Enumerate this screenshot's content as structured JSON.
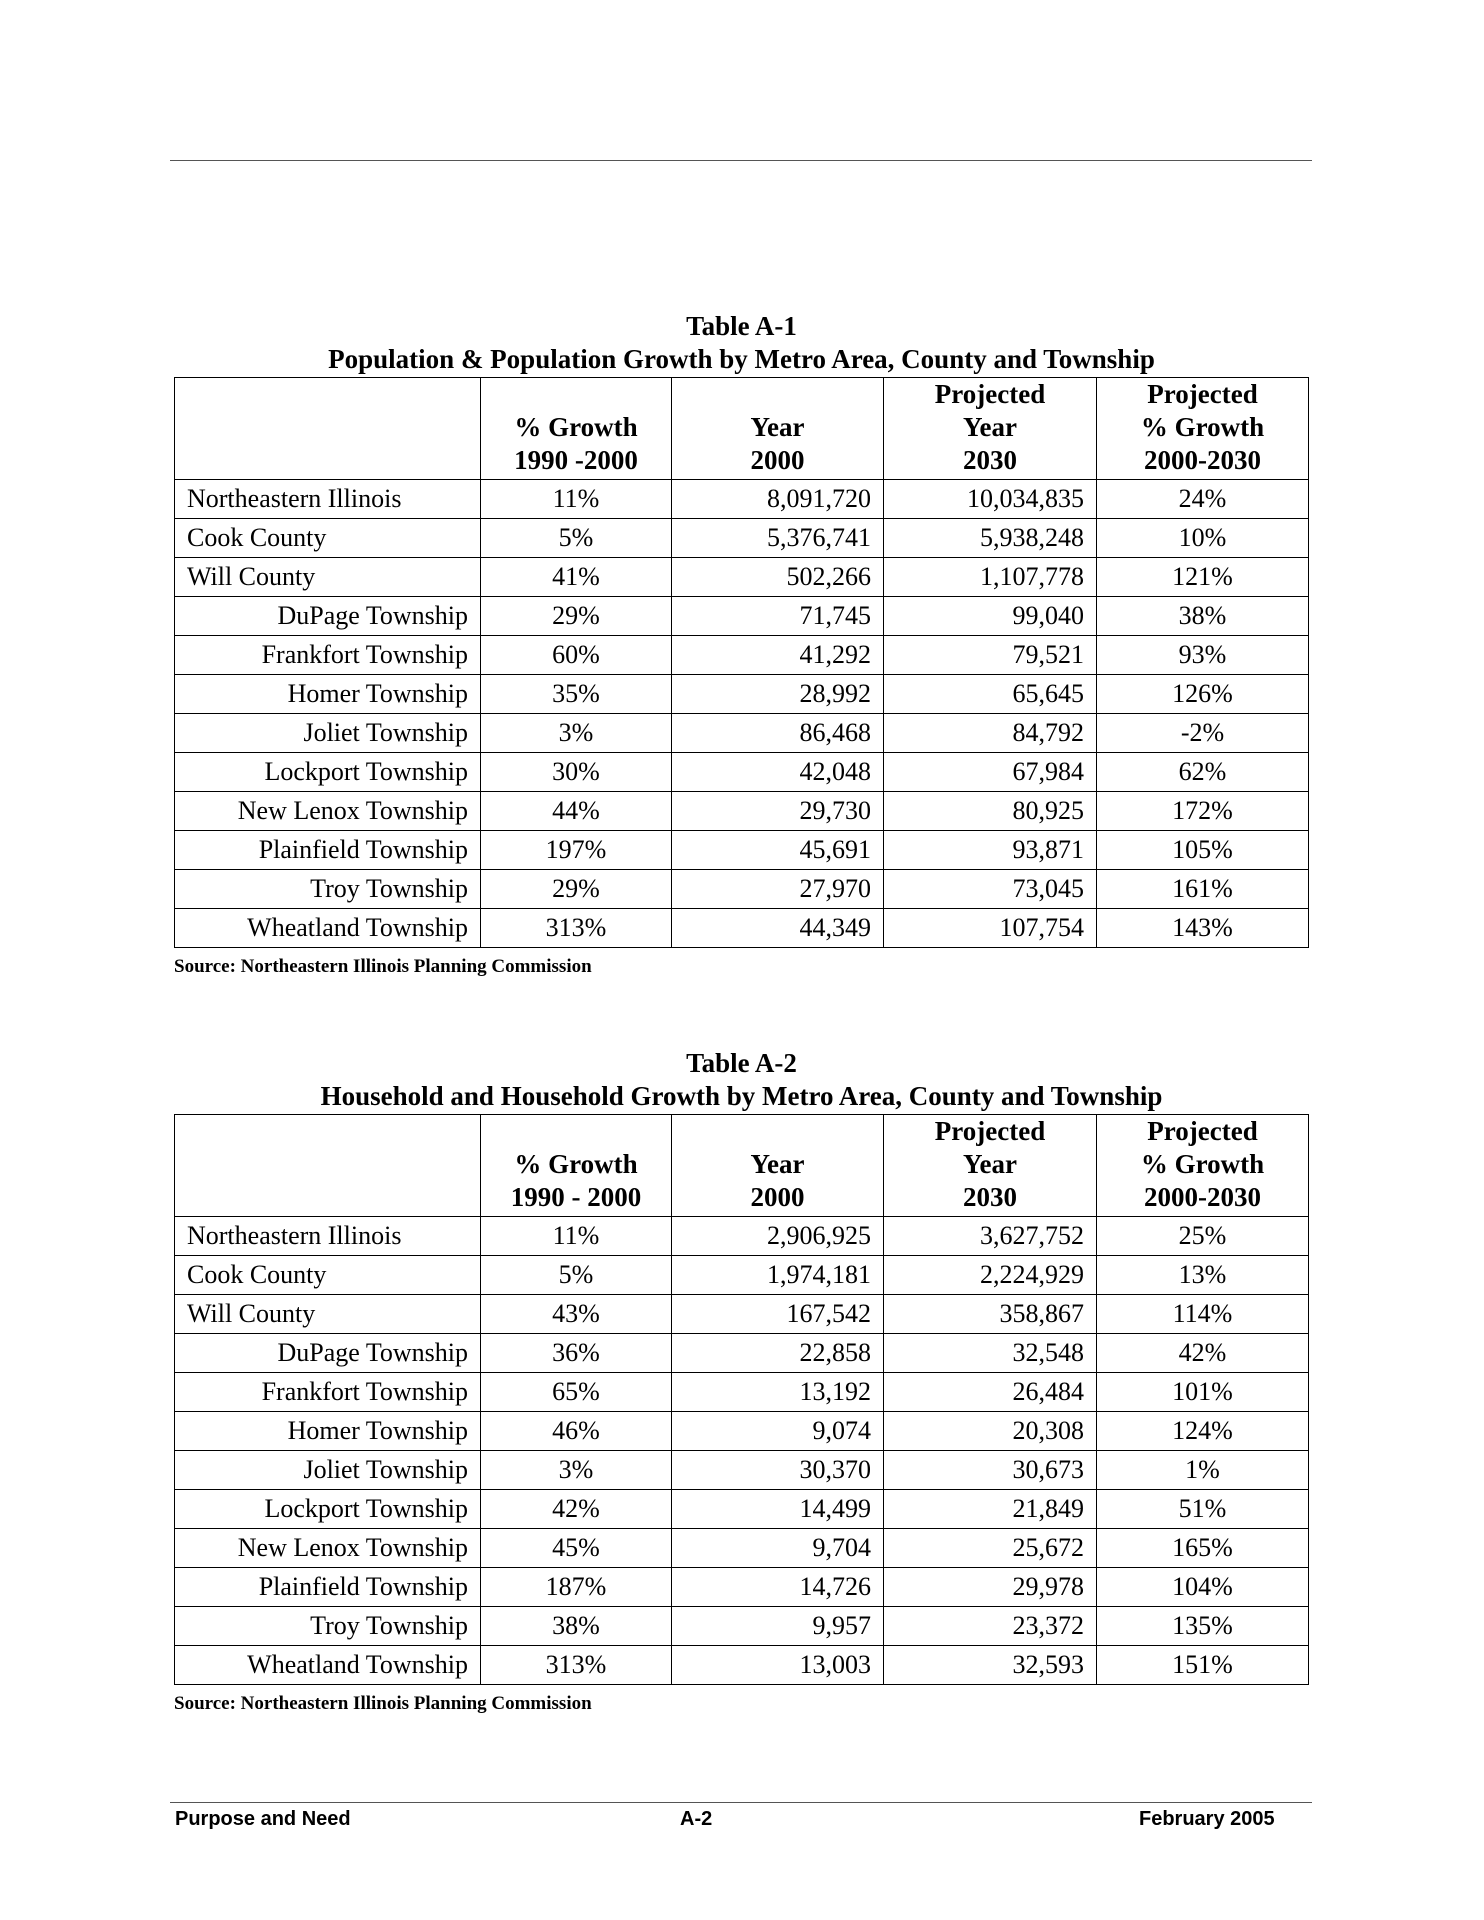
{
  "tables": [
    {
      "number": "Table A-1",
      "title": "Population & Population Growth by Metro Area, County and Township",
      "headers": [
        [
          "",
          "",
          " "
        ],
        [
          "",
          "% Growth",
          "1990 -2000"
        ],
        [
          "",
          "Year",
          "2000"
        ],
        [
          "Projected",
          "Year",
          "2030"
        ],
        [
          "Projected",
          "% Growth",
          "2000-2030"
        ]
      ],
      "rows": [
        {
          "name": "Northeastern Illinois",
          "sub": false,
          "v": [
            "11%",
            "8,091,720",
            "10,034,835",
            "24%"
          ]
        },
        {
          "name": "Cook County",
          "sub": false,
          "v": [
            "5%",
            "5,376,741",
            "5,938,248",
            "10%"
          ]
        },
        {
          "name": "Will County",
          "sub": false,
          "v": [
            "41%",
            "502,266",
            "1,107,778",
            "121%"
          ]
        },
        {
          "name": "DuPage Township",
          "sub": true,
          "v": [
            "29%",
            "71,745",
            "99,040",
            "38%"
          ]
        },
        {
          "name": "Frankfort Township",
          "sub": true,
          "v": [
            "60%",
            "41,292",
            "79,521",
            "93%"
          ]
        },
        {
          "name": "Homer Township",
          "sub": true,
          "v": [
            "35%",
            "28,992",
            "65,645",
            "126%"
          ]
        },
        {
          "name": "Joliet Township",
          "sub": true,
          "v": [
            "3%",
            "86,468",
            "84,792",
            "-2%"
          ]
        },
        {
          "name": "Lockport Township",
          "sub": true,
          "v": [
            "30%",
            "42,048",
            "67,984",
            "62%"
          ]
        },
        {
          "name": "New Lenox Township",
          "sub": true,
          "v": [
            "44%",
            "29,730",
            "80,925",
            "172%"
          ]
        },
        {
          "name": "Plainfield Township",
          "sub": true,
          "v": [
            "197%",
            "45,691",
            "93,871",
            "105%"
          ]
        },
        {
          "name": "Troy Township",
          "sub": true,
          "v": [
            "29%",
            "27,970",
            "73,045",
            "161%"
          ]
        },
        {
          "name": "Wheatland Township",
          "sub": true,
          "v": [
            "313%",
            "44,349",
            "107,754",
            "143%"
          ]
        }
      ],
      "source": "Source:  Northeastern Illinois Planning Commission"
    },
    {
      "number": "Table A-2",
      "title": "Household and Household Growth by Metro Area, County and Township",
      "headers": [
        [
          "",
          "",
          " "
        ],
        [
          "",
          "% Growth",
          "1990 - 2000"
        ],
        [
          "",
          "Year",
          "2000"
        ],
        [
          "Projected",
          "Year",
          "2030"
        ],
        [
          "Projected",
          "% Growth",
          "2000-2030"
        ]
      ],
      "rows": [
        {
          "name": "Northeastern Illinois",
          "sub": false,
          "v": [
            "11%",
            "2,906,925",
            "3,627,752",
            "25%"
          ]
        },
        {
          "name": "Cook County",
          "sub": false,
          "v": [
            "5%",
            "1,974,181",
            "2,224,929",
            "13%"
          ]
        },
        {
          "name": "Will County",
          "sub": false,
          "v": [
            "43%",
            "167,542",
            "358,867",
            "114%"
          ]
        },
        {
          "name": "DuPage Township",
          "sub": true,
          "v": [
            "36%",
            "22,858",
            "32,548",
            "42%"
          ]
        },
        {
          "name": "Frankfort Township",
          "sub": true,
          "v": [
            "65%",
            "13,192",
            "26,484",
            "101%"
          ]
        },
        {
          "name": "Homer Township",
          "sub": true,
          "v": [
            "46%",
            "9,074",
            "20,308",
            "124%"
          ]
        },
        {
          "name": "Joliet Township",
          "sub": true,
          "v": [
            "3%",
            "30,370",
            "30,673",
            "1%"
          ]
        },
        {
          "name": "Lockport Township",
          "sub": true,
          "v": [
            "42%",
            "14,499",
            "21,849",
            "51%"
          ]
        },
        {
          "name": "New Lenox Township",
          "sub": true,
          "v": [
            "45%",
            "9,704",
            "25,672",
            "165%"
          ]
        },
        {
          "name": "Plainfield Township",
          "sub": true,
          "v": [
            "187%",
            "14,726",
            "29,978",
            "104%"
          ]
        },
        {
          "name": "Troy Township",
          "sub": true,
          "v": [
            "38%",
            "9,957",
            "23,372",
            "135%"
          ]
        },
        {
          "name": "Wheatland Township",
          "sub": true,
          "v": [
            "313%",
            "13,003",
            "32,593",
            "151%"
          ]
        }
      ],
      "source": "Source:  Northeastern Illinois Planning Commission"
    }
  ],
  "footer": {
    "left": "Purpose and Need",
    "center": "A-2",
    "right": "February 2005"
  }
}
